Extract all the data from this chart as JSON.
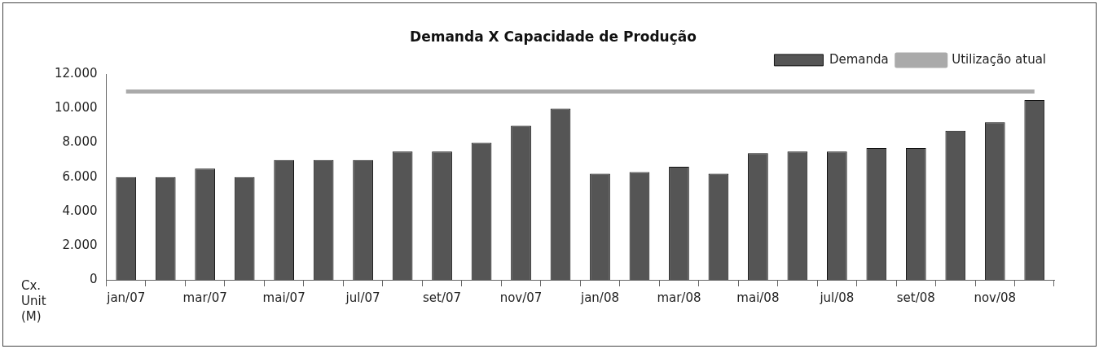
{
  "chart_data": {
    "type": "bar",
    "title": "Demanda X Capacidade de Produção",
    "ylabel": "Cx. Unit (M)",
    "categories": [
      "jan/07",
      null,
      "mar/07",
      null,
      "mai/07",
      null,
      "jul/07",
      null,
      "set/07",
      null,
      "nov/07",
      null,
      "jan/08",
      null,
      "mar/08",
      null,
      "mai/08",
      null,
      "jul/08",
      null,
      "set/08",
      null,
      "nov/08",
      null
    ],
    "series": [
      {
        "name": "Demanda",
        "color": "#555555",
        "values": [
          6000,
          6000,
          6500,
          6000,
          7000,
          7000,
          7000,
          7500,
          7500,
          8000,
          9000,
          10000,
          6200,
          6300,
          6600,
          6200,
          7400,
          7500,
          7500,
          7700,
          7700,
          8700,
          9200,
          10500
        ]
      },
      {
        "name": "Utilização atual",
        "type": "line",
        "color": "#aaaaaa",
        "values": [
          11000,
          11000,
          11000,
          11000,
          11000,
          11000,
          11000,
          11000,
          11000,
          11000,
          11000,
          11000,
          11000,
          11000,
          11000,
          11000,
          11000,
          11000,
          11000,
          11000,
          11000,
          11000,
          11000,
          11000
        ]
      }
    ],
    "ylim": [
      0,
      12000
    ],
    "yticks": [
      {
        "value": 0,
        "label": "0"
      },
      {
        "value": 2000,
        "label": "2.000"
      },
      {
        "value": 4000,
        "label": "4.000"
      },
      {
        "value": 6000,
        "label": "6.000"
      },
      {
        "value": 8000,
        "label": "8.000"
      },
      {
        "value": 10000,
        "label": "10.000"
      },
      {
        "value": 12000,
        "label": "12.000"
      }
    ],
    "legend": "top right",
    "marker": "none",
    "line_style": "solid"
  }
}
